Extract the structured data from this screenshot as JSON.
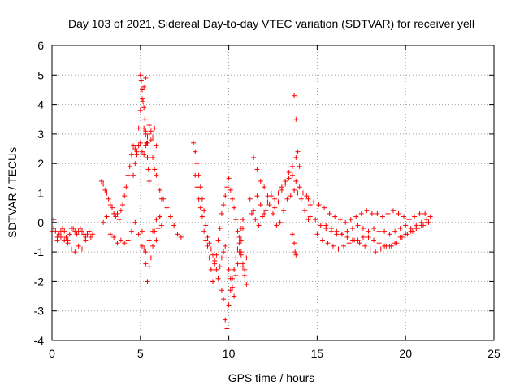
{
  "chart_data": {
    "type": "scatter",
    "title": "Day 103 of 2021, Sidereal Day-to-day VTEC variation (SDTVAR) for receiver yell",
    "xlabel": "GPS time / hours",
    "ylabel": "SDTVAR / TECUs",
    "xlim": [
      0,
      25
    ],
    "ylim": [
      -4,
      6
    ],
    "xticks": [
      "0",
      "5",
      "10",
      "15",
      "20",
      "25"
    ],
    "yticks": [
      "-4",
      "-3",
      "-2",
      "-1",
      "0",
      "1",
      "2",
      "3",
      "4",
      "5",
      "6"
    ],
    "grid": true,
    "marker": "+",
    "color": "#ff0000",
    "series": [
      {
        "name": "SDTVAR",
        "x": [
          0.0,
          0.1,
          0.2,
          0.3,
          0.4,
          0.5,
          0.6,
          0.7,
          0.8,
          0.9,
          1.0,
          1.1,
          1.2,
          1.3,
          1.4,
          1.5,
          1.6,
          1.7,
          1.8,
          1.9,
          2.0,
          2.1,
          2.2,
          2.3,
          0.1,
          0.3,
          0.5,
          0.7,
          0.9,
          1.1,
          1.3,
          1.5,
          1.7,
          1.9,
          2.1,
          2.8,
          2.9,
          3.0,
          3.1,
          3.2,
          3.3,
          3.4,
          3.5,
          3.6,
          3.7,
          3.8,
          3.9,
          4.0,
          4.1,
          4.2,
          4.3,
          4.4,
          4.5,
          4.6,
          4.7,
          4.8,
          4.9,
          5.0,
          5.1,
          5.2,
          5.3,
          5.4,
          5.5,
          5.6,
          5.7,
          5.8,
          5.9,
          6.0,
          6.1,
          6.2,
          2.9,
          3.1,
          3.3,
          3.5,
          3.7,
          3.9,
          4.1,
          4.3,
          4.5,
          4.7,
          4.9,
          5.1,
          5.3,
          5.5,
          5.7,
          5.9,
          6.1,
          4.6,
          4.7,
          4.8,
          4.9,
          5.0,
          5.1,
          5.2,
          5.3,
          5.0,
          5.05,
          5.1,
          5.15,
          5.2,
          5.25,
          5.3,
          5.35,
          5.4,
          5.45,
          5.5,
          5.1,
          5.2,
          5.3,
          5.4,
          5.5,
          5.6,
          5.7,
          5.8,
          5.9,
          6.0,
          6.1,
          6.2,
          5.2,
          5.3,
          5.4,
          5.5,
          5.6,
          5.7,
          5.8,
          5.9,
          6.3,
          6.5,
          6.7,
          6.9,
          7.1,
          7.3,
          8.0,
          8.1,
          8.2,
          8.3,
          8.4,
          8.5,
          8.6,
          8.7,
          8.8,
          8.9,
          9.0,
          9.1,
          9.2,
          9.3,
          9.4,
          9.5,
          9.6,
          9.7,
          9.8,
          9.9,
          10.0,
          10.1,
          10.2,
          10.3,
          10.4,
          10.5,
          10.6,
          10.7,
          10.8,
          8.1,
          8.2,
          8.3,
          8.4,
          8.5,
          8.6,
          8.7,
          8.8,
          8.9,
          9.0,
          9.1,
          9.2,
          9.3,
          9.4,
          9.5,
          9.6,
          9.7,
          9.8,
          9.9,
          10.0,
          10.1,
          10.2,
          10.3,
          10.4,
          10.5,
          10.6,
          10.7,
          10.8,
          10.9,
          11.0,
          9.6,
          9.7,
          9.8,
          9.9,
          10.0,
          10.1,
          10.2,
          10.3,
          10.4,
          10.5,
          10.6,
          10.7,
          10.8,
          10.7,
          10.8,
          10.9,
          11.0,
          11.2,
          11.4,
          11.6,
          11.8,
          12.0,
          12.2,
          12.4,
          12.6,
          12.8,
          13.0,
          13.2,
          13.4,
          13.6,
          13.8,
          14.0,
          14.2,
          14.4,
          14.6,
          11.3,
          11.5,
          11.7,
          11.9,
          12.1,
          12.3,
          12.5,
          12.7,
          12.9,
          13.1,
          13.3,
          13.5,
          13.7,
          13.9,
          14.1,
          14.3,
          14.5,
          11.4,
          11.6,
          11.8,
          12.0,
          12.2,
          12.4,
          12.6,
          12.8,
          13.0,
          13.2,
          13.4,
          13.6,
          13.8,
          13.7,
          13.8,
          13.9,
          14.0,
          13.6,
          13.7,
          13.75,
          13.8,
          14.5,
          14.8,
          15.1,
          15.4,
          15.7,
          16.0,
          16.3,
          16.6,
          16.9,
          17.2,
          17.5,
          17.8,
          18.1,
          18.4,
          18.7,
          19.0,
          19.3,
          19.6,
          19.9,
          20.2,
          20.5,
          20.8,
          21.1,
          21.4,
          14.6,
          14.9,
          15.2,
          15.5,
          15.8,
          16.1,
          16.4,
          16.7,
          17.0,
          17.3,
          17.6,
          17.9,
          18.2,
          18.5,
          18.8,
          19.1,
          19.4,
          19.7,
          20.0,
          20.3,
          20.6,
          20.9,
          21.2,
          15.0,
          15.3,
          15.6,
          15.9,
          16.2,
          16.5,
          16.8,
          17.1,
          17.4,
          17.7,
          18.0,
          18.3,
          18.6,
          18.9,
          19.2,
          19.5,
          19.8,
          20.1,
          20.4,
          20.7,
          21.0,
          21.3,
          15.5,
          15.8,
          16.1,
          16.4,
          16.7,
          17.0,
          17.3,
          17.6,
          17.9,
          18.2,
          18.5,
          18.8,
          19.1,
          19.4,
          19.7,
          20.0,
          20.3,
          20.6,
          20.9,
          21.2
        ],
        "y": [
          -0.3,
          -0.2,
          -0.3,
          -0.5,
          -0.4,
          -0.3,
          -0.2,
          -0.3,
          -0.5,
          -0.6,
          -0.4,
          -0.2,
          -0.2,
          -0.3,
          -0.4,
          -0.3,
          -0.2,
          -0.3,
          -0.4,
          -0.5,
          -0.4,
          -0.3,
          -0.5,
          -0.4,
          0.1,
          -0.6,
          -0.5,
          -0.6,
          -0.7,
          -0.9,
          -1.0,
          -0.8,
          -0.9,
          -0.6,
          -0.3,
          1.4,
          1.3,
          1.1,
          1.0,
          0.8,
          0.6,
          0.5,
          0.3,
          0.2,
          0.3,
          0.1,
          0.4,
          0.6,
          0.9,
          1.2,
          1.6,
          1.9,
          2.3,
          2.6,
          2.5,
          2.4,
          2.6,
          2.7,
          2.4,
          2.3,
          2.6,
          2.9,
          3.0,
          2.8,
          2.2,
          1.8,
          1.6,
          1.3,
          1.1,
          0.8,
          0.0,
          0.2,
          -0.4,
          -0.5,
          -0.7,
          -0.6,
          -0.7,
          -0.6,
          -0.3,
          0.0,
          -0.4,
          -0.8,
          -1.0,
          -0.6,
          -0.3,
          0.1,
          0.2,
          1.6,
          2.0,
          2.3,
          3.2,
          3.8,
          4.2,
          4.6,
          4.9,
          5.0,
          4.8,
          4.5,
          4.1,
          3.9,
          3.5,
          3.1,
          2.7,
          2.2,
          1.8,
          1.4,
          -0.3,
          -0.9,
          -1.4,
          -2.0,
          -1.5,
          -1.2,
          -0.8,
          -0.3,
          -0.6,
          -0.2,
          0.2,
          -0.1,
          3.2,
          3.0,
          2.7,
          3.3,
          3.1,
          2.9,
          3.2,
          2.6,
          0.8,
          0.5,
          0.2,
          -0.1,
          -0.4,
          -0.5,
          2.7,
          2.4,
          2.0,
          1.6,
          1.2,
          0.8,
          0.4,
          -0.1,
          -0.5,
          -0.7,
          -0.9,
          -1.1,
          -1.3,
          -1.6,
          -1.9,
          -1.5,
          -1.2,
          -1.0,
          -0.8,
          -1.2,
          -1.6,
          -1.9,
          -2.2,
          -2.5,
          -1.8,
          -1.4,
          -1.0,
          -0.6,
          -0.2,
          1.6,
          1.2,
          0.8,
          0.5,
          0.2,
          -0.3,
          -0.6,
          -0.8,
          -1.2,
          -1.6,
          -2.0,
          -1.4,
          -1.1,
          -0.6,
          -0.2,
          0.3,
          0.6,
          0.9,
          1.2,
          1.5,
          1.1,
          0.8,
          0.5,
          0.1,
          -0.3,
          -0.7,
          -1.1,
          -1.5,
          -1.8,
          -2.1,
          -2.3,
          -2.6,
          -3.3,
          -3.6,
          -2.8,
          -2.3,
          -1.9,
          -1.6,
          -1.2,
          -0.9,
          -0.5,
          -0.2,
          0.1,
          -1.0,
          -1.4,
          -1.6,
          -1.2,
          0.8,
          0.4,
          0.9,
          0.6,
          0.3,
          0.9,
          1.0,
          0.5,
          0.7,
          1.1,
          1.3,
          1.5,
          1.6,
          1.4,
          1.2,
          1.0,
          0.9,
          0.6,
          0.3,
          0.1,
          -0.1,
          0.2,
          0.4,
          0.6,
          0.3,
          -0.1,
          0.0,
          0.4,
          0.8,
          0.9,
          1.1,
          1.0,
          0.8,
          0.4,
          0.1,
          2.2,
          1.8,
          1.4,
          1.2,
          0.7,
          0.9,
          0.8,
          1.0,
          1.2,
          1.4,
          1.7,
          1.9,
          2.2,
          4.3,
          3.5,
          2.4,
          1.9,
          -0.4,
          -0.7,
          -1.0,
          -1.1,
          0.8,
          0.7,
          0.6,
          0.5,
          0.3,
          0.2,
          0.1,
          0.0,
          0.1,
          0.2,
          0.3,
          0.4,
          0.3,
          0.3,
          0.2,
          0.3,
          0.4,
          0.3,
          0.2,
          0.1,
          0.2,
          0.3,
          0.3,
          0.2,
          0.2,
          0.1,
          -0.1,
          -0.2,
          -0.3,
          -0.4,
          -0.4,
          -0.3,
          -0.2,
          -0.1,
          -0.2,
          -0.3,
          -0.2,
          -0.3,
          -0.3,
          -0.4,
          -0.3,
          -0.2,
          -0.1,
          -0.2,
          -0.1,
          0.0,
          0.1,
          -0.4,
          -0.6,
          -0.7,
          -0.8,
          -0.9,
          -0.8,
          -0.7,
          -0.6,
          -0.7,
          -0.8,
          -0.9,
          -1.0,
          -0.9,
          -0.8,
          -0.8,
          -0.7,
          -0.5,
          -0.4,
          -0.3,
          -0.2,
          -0.1,
          0.0,
          -0.1,
          -0.2,
          -0.3,
          -0.4,
          -0.5,
          -0.6,
          -0.6,
          -0.5,
          -0.5,
          -0.6,
          -0.7,
          -0.8,
          -0.8,
          -0.7,
          -0.5,
          -0.4,
          -0.3,
          -0.2,
          -0.1,
          0.0
        ]
      }
    ]
  }
}
